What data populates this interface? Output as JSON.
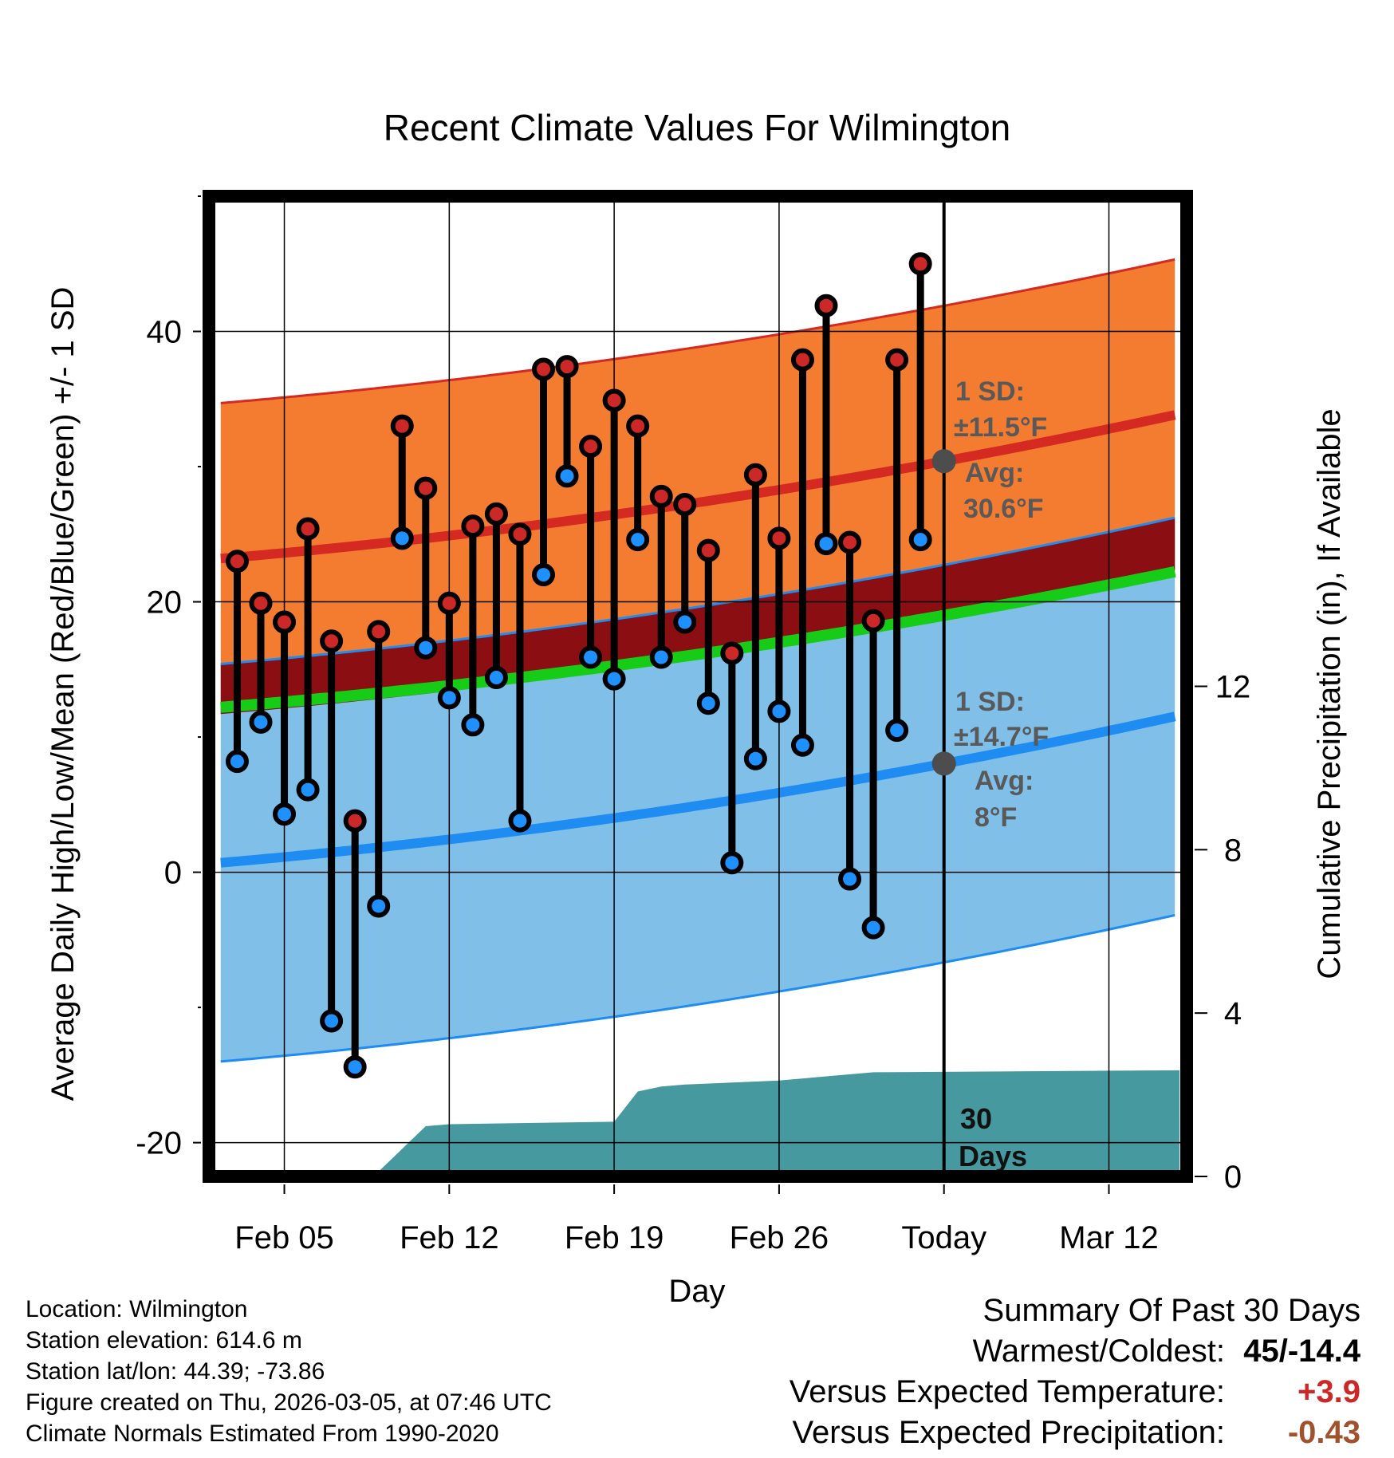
{
  "chart_data": {
    "type": "range",
    "title": "Recent Climate Values For Wilmington",
    "xlabel": "Day",
    "ylabel": "Average Daily High/Low/Mean (Red/Blue/Green) +/- 1 SD",
    "y2label": "Cumulative Precipitation (in), If Available",
    "xlim": [
      1.8,
      43.3
    ],
    "ylim": [
      -22.5,
      50
    ],
    "y2lim": [
      0,
      24
    ],
    "today": 33,
    "x_ticks": [
      {
        "day": 5,
        "label": "Feb 05"
      },
      {
        "day": 12,
        "label": "Feb 12"
      },
      {
        "day": 19,
        "label": "Feb 19"
      },
      {
        "day": 26,
        "label": "Feb 26"
      },
      {
        "day": 33,
        "label": "Today"
      },
      {
        "day": 40,
        "label": "Mar 12"
      }
    ],
    "y_ticks": [
      -20,
      0,
      20,
      40
    ],
    "y2_ticks": [
      0,
      4,
      8,
      12
    ],
    "normal_high": {
      "days": [
        2.3,
        43
      ],
      "values": [
        23.2,
        33.9
      ],
      "sd": 11.5
    },
    "normal_low": {
      "days": [
        2.3,
        43
      ],
      "values": [
        0.7,
        11.6
      ],
      "sd": 14.7
    },
    "normal_mean": {
      "days": [
        2.3,
        43
      ],
      "values": [
        12.2,
        22.3
      ]
    },
    "observed": {
      "days": [
        3,
        4,
        5,
        6,
        7,
        8,
        9,
        10,
        11,
        12,
        13,
        14,
        15,
        16,
        17,
        18,
        19,
        20,
        21,
        22,
        23,
        24,
        25,
        26,
        27,
        28,
        29,
        30,
        31,
        32
      ],
      "highs": [
        23,
        19.9,
        18.5,
        25.4,
        17.1,
        3.8,
        17.8,
        33,
        28.4,
        19.9,
        25.6,
        26.5,
        25,
        37.2,
        37.4,
        31.5,
        34.9,
        33,
        27.8,
        27.2,
        23.8,
        16.2,
        29.4,
        24.7,
        37.9,
        41.9,
        24.4,
        18.6,
        37.9,
        45
      ],
      "lows": [
        8.2,
        11.1,
        4.3,
        6.1,
        -11,
        -14.4,
        -2.5,
        24.7,
        16.6,
        12.9,
        10.9,
        14.4,
        3.8,
        22,
        29.3,
        15.9,
        14.3,
        24.6,
        15.9,
        18.5,
        12.5,
        0.7,
        8.4,
        11.9,
        9.4,
        24.3,
        -0.5,
        -4.1,
        10.5,
        24.6
      ]
    },
    "precip_cumulative": {
      "days": [
        7,
        9,
        11,
        12,
        19,
        20,
        21,
        22,
        26,
        30,
        43
      ],
      "values": [
        0.05,
        0.12,
        1.23,
        1.28,
        1.34,
        2.08,
        2.2,
        2.25,
        2.35,
        2.55,
        2.6
      ]
    },
    "annotations": {
      "high_sd": "1 SD:",
      "high_sd_value": "±11.5°F",
      "high_avg": "Avg:",
      "high_avg_value": "30.6°F",
      "low_sd": "1 SD:",
      "low_sd_value": "±14.7°F",
      "low_avg": "Avg:",
      "low_avg_value": "8°F",
      "days_label_1": "30",
      "days_label_2": "Days"
    },
    "colors": {
      "high_band": "#f47c30",
      "high_line": "#d42a22",
      "overlap_band": "#8b0e12",
      "low_band": "#7fbfe8",
      "low_line": "#1e8cf0",
      "mean_line": "#16cc16",
      "precip": "#46999f",
      "high_marker": "#cc2828",
      "low_marker": "#1e90ff",
      "avg_marker": "#4d4d4d"
    }
  },
  "info": {
    "location": "Location: Wilmington",
    "elevation": "Station elevation: 614.6 m",
    "latlon": "Station lat/lon: 44.39; -73.86",
    "created": "Figure created on Thu, 2026-03-05, at 07:46 UTC",
    "normals": "Climate Normals Estimated From 1990-2020"
  },
  "summary": {
    "heading": "Summary Of Past 30 Days",
    "warmest_label": "Warmest/Coldest:",
    "warmest_value": "45/-14.4",
    "temp_label": "Versus Expected Temperature:",
    "temp_value": "+3.9",
    "temp_color": "#cc2828",
    "precip_label": "Versus Expected Precipitation:",
    "precip_value": "-0.43",
    "precip_color": "#a0522d"
  }
}
